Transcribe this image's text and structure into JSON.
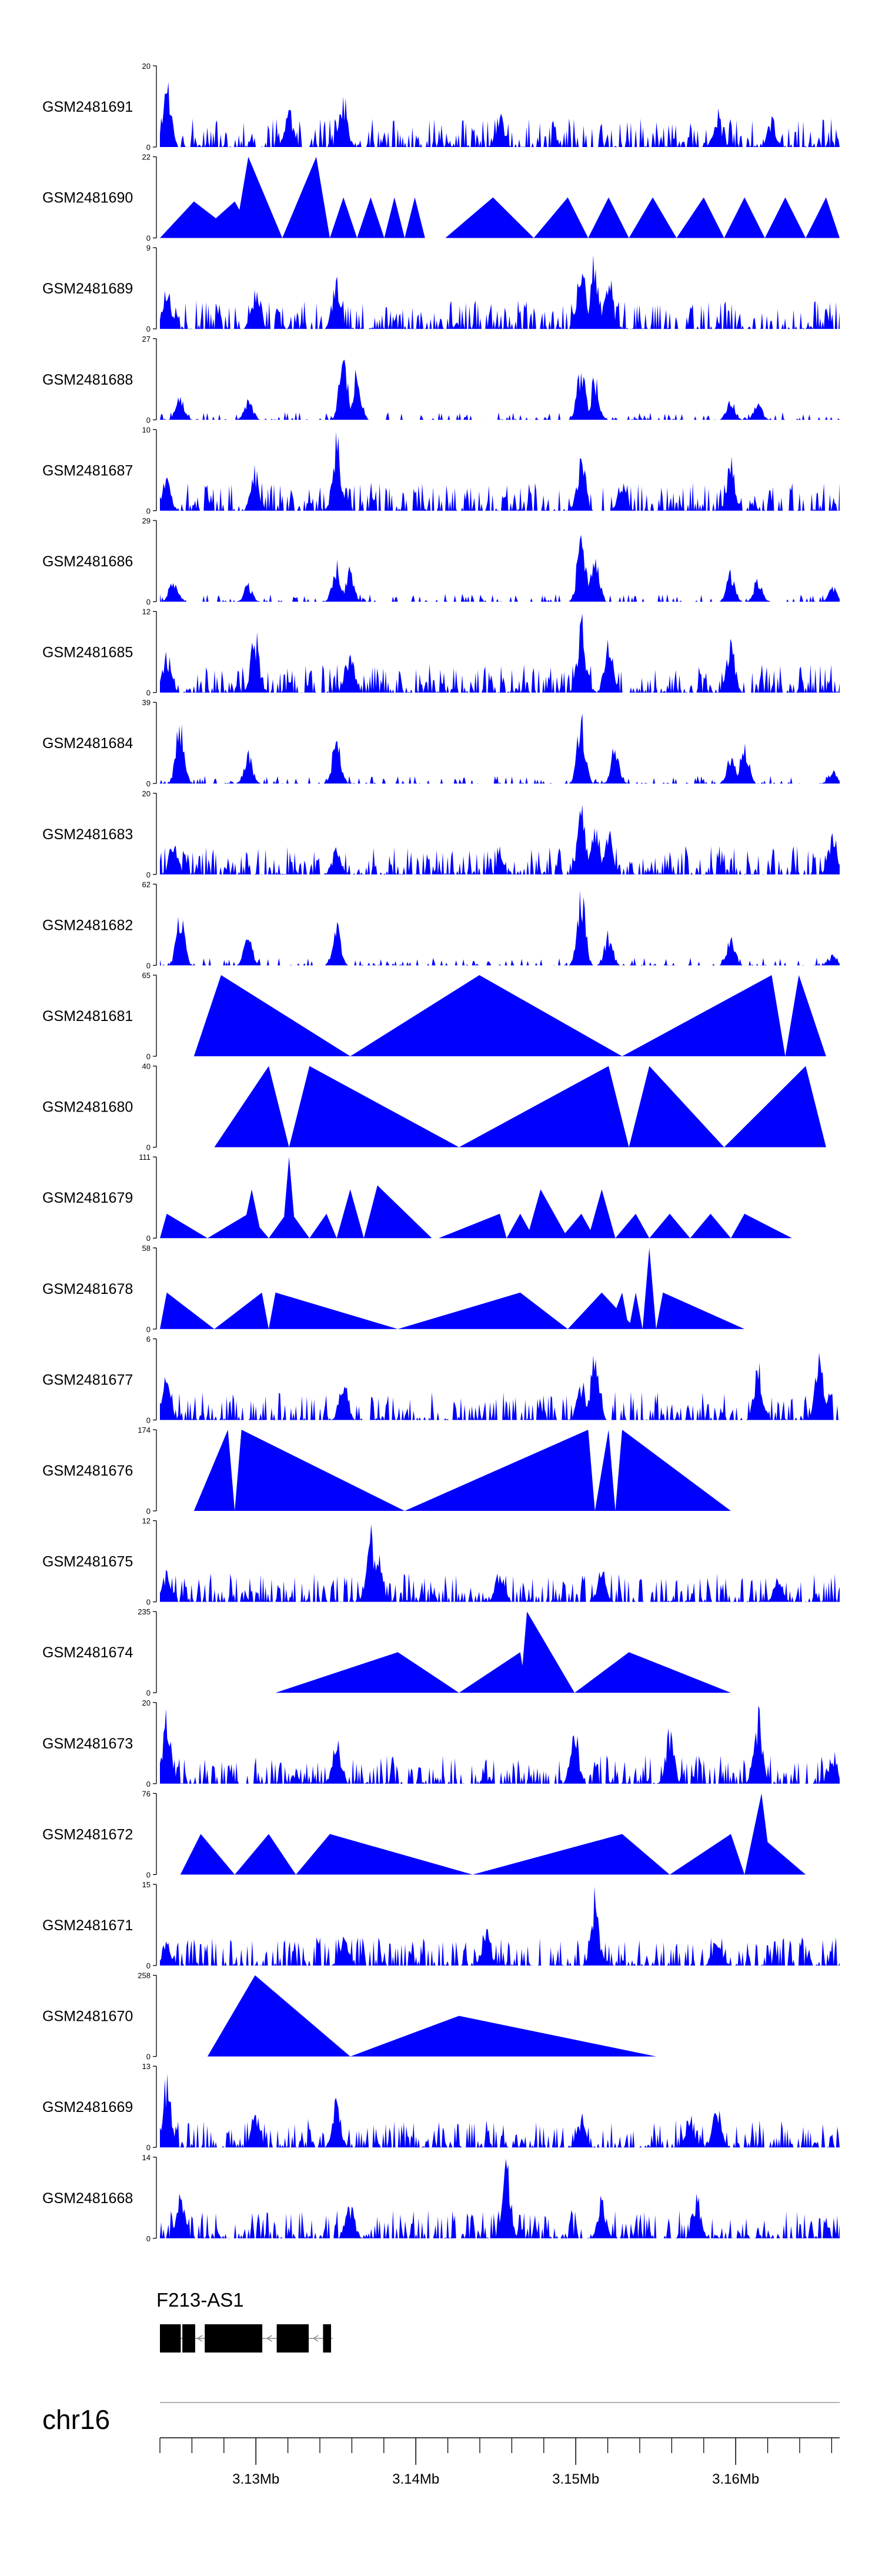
{
  "chart_data": {
    "type": "area",
    "title": "",
    "chromosome": "chr16",
    "xlabel": "",
    "ylabel": "",
    "xlim": [
      3124000,
      3166500
    ],
    "axis_ticks": [
      "3.13Mb",
      "3.14Mb",
      "3.15Mb",
      "3.16Mb"
    ],
    "axis_tick_values": [
      3130000,
      3140000,
      3150000,
      3160000
    ],
    "minor_tick_step": 2000,
    "fill_color": "#0000ff",
    "tracks": [
      {
        "name": "GSM2481691",
        "ymax": 20,
        "ymax_label": "20",
        "ymin_label": "0",
        "seed": 11,
        "kind": "dense",
        "peaks": [
          [
            0.01,
            1.0
          ],
          [
            0.27,
            0.7
          ],
          [
            0.19,
            0.55
          ],
          [
            0.82,
            0.5
          ],
          [
            0.5,
            0.45
          ],
          [
            0.9,
            0.4
          ]
        ]
      },
      {
        "name": "GSM2481690",
        "ymax": 22,
        "ymax_label": "22",
        "ymin_label": "0",
        "kind": "tri",
        "tris": [
          [
            0.0,
            0.05,
            0.12,
            0.45
          ],
          [
            0.05,
            0.11,
            0.14,
            0.45
          ],
          [
            0.11,
            0.13,
            0.18,
            1.0
          ],
          [
            0.18,
            0.23,
            0.25,
            1.0
          ],
          [
            0.25,
            0.27,
            0.29,
            0.5
          ],
          [
            0.29,
            0.31,
            0.33,
            0.5
          ],
          [
            0.33,
            0.345,
            0.36,
            0.5
          ],
          [
            0.36,
            0.375,
            0.39,
            0.5
          ],
          [
            0.42,
            0.49,
            0.55,
            0.5
          ],
          [
            0.55,
            0.6,
            0.63,
            0.5
          ],
          [
            0.63,
            0.66,
            0.69,
            0.5
          ],
          [
            0.69,
            0.725,
            0.76,
            0.5
          ],
          [
            0.76,
            0.8,
            0.83,
            0.5
          ],
          [
            0.83,
            0.86,
            0.89,
            0.5
          ],
          [
            0.89,
            0.92,
            0.95,
            0.5
          ],
          [
            0.95,
            0.98,
            1.0,
            0.5
          ]
        ]
      },
      {
        "name": "GSM2481689",
        "ymax": 9,
        "ymax_label": "9",
        "ymin_label": "0",
        "seed": 23,
        "kind": "dense",
        "peaks": [
          [
            0.26,
            0.8
          ],
          [
            0.62,
            0.95
          ],
          [
            0.64,
            1.0
          ],
          [
            0.66,
            0.8
          ],
          [
            0.01,
            0.6
          ],
          [
            0.14,
            0.55
          ]
        ]
      },
      {
        "name": "GSM2481688",
        "ymax": 27,
        "ymax_label": "27",
        "ymin_label": "0",
        "seed": 31,
        "kind": "sparse",
        "peaks": [
          [
            0.27,
            1.0
          ],
          [
            0.29,
            0.7
          ],
          [
            0.62,
            0.8
          ],
          [
            0.64,
            0.6
          ],
          [
            0.03,
            0.35
          ],
          [
            0.13,
            0.3
          ],
          [
            0.84,
            0.3
          ],
          [
            0.88,
            0.25
          ]
        ]
      },
      {
        "name": "GSM2481687",
        "ymax": 10,
        "ymax_label": "10",
        "ymin_label": "0",
        "seed": 37,
        "kind": "dense",
        "peaks": [
          [
            0.26,
            1.0
          ],
          [
            0.62,
            0.8
          ],
          [
            0.14,
            0.6
          ],
          [
            0.84,
            0.7
          ],
          [
            0.01,
            0.6
          ],
          [
            0.68,
            0.45
          ]
        ]
      },
      {
        "name": "GSM2481686",
        "ymax": 29,
        "ymax_label": "29",
        "ymin_label": "0",
        "seed": 41,
        "kind": "sparse",
        "peaks": [
          [
            0.62,
            1.0
          ],
          [
            0.64,
            0.75
          ],
          [
            0.26,
            0.55
          ],
          [
            0.28,
            0.45
          ],
          [
            0.02,
            0.35
          ],
          [
            0.13,
            0.25
          ],
          [
            0.84,
            0.4
          ],
          [
            0.88,
            0.35
          ],
          [
            0.99,
            0.2
          ]
        ]
      },
      {
        "name": "GSM2481685",
        "ymax": 12,
        "ymax_label": "12",
        "ymin_label": "0",
        "seed": 47,
        "kind": "dense",
        "peaks": [
          [
            0.62,
            1.0
          ],
          [
            0.14,
            0.85
          ],
          [
            0.28,
            0.65
          ],
          [
            0.66,
            0.8
          ],
          [
            0.84,
            0.7
          ],
          [
            0.01,
            0.6
          ]
        ]
      },
      {
        "name": "GSM2481684",
        "ymax": 39,
        "ymax_label": "39",
        "ymin_label": "0",
        "seed": 53,
        "kind": "sparse",
        "peaks": [
          [
            0.03,
            1.0
          ],
          [
            0.13,
            0.45
          ],
          [
            0.26,
            0.7
          ],
          [
            0.62,
            0.95
          ],
          [
            0.67,
            0.55
          ],
          [
            0.84,
            0.4
          ],
          [
            0.86,
            0.6
          ],
          [
            0.99,
            0.2
          ]
        ]
      },
      {
        "name": "GSM2481683",
        "ymax": 20,
        "ymax_label": "20",
        "ymin_label": "0",
        "seed": 59,
        "kind": "dense",
        "peaks": [
          [
            0.62,
            1.0
          ],
          [
            0.64,
            0.85
          ],
          [
            0.66,
            0.6
          ],
          [
            0.02,
            0.5
          ],
          [
            0.26,
            0.4
          ],
          [
            0.99,
            0.65
          ]
        ]
      },
      {
        "name": "GSM2481682",
        "ymax": 62,
        "ymax_label": "62",
        "ymin_label": "0",
        "seed": 61,
        "kind": "sparse",
        "peaks": [
          [
            0.03,
            0.75
          ],
          [
            0.13,
            0.45
          ],
          [
            0.26,
            0.55
          ],
          [
            0.62,
            1.0
          ],
          [
            0.66,
            0.45
          ],
          [
            0.84,
            0.45
          ],
          [
            0.99,
            0.15
          ]
        ]
      },
      {
        "name": "GSM2481681",
        "ymax": 65,
        "ymax_label": "65",
        "ymin_label": "0",
        "kind": "tri",
        "tris": [
          [
            0.05,
            0.09,
            0.28,
            1.0
          ],
          [
            0.28,
            0.47,
            0.68,
            1.0
          ],
          [
            0.68,
            0.9,
            0.92,
            1.0
          ],
          [
            0.92,
            0.94,
            0.98,
            1.0
          ]
        ]
      },
      {
        "name": "GSM2481680",
        "ymax": 40,
        "ymax_label": "40",
        "ymin_label": "0",
        "kind": "tri",
        "tris": [
          [
            0.08,
            0.16,
            0.19,
            1.0
          ],
          [
            0.19,
            0.22,
            0.44,
            1.0
          ],
          [
            0.44,
            0.66,
            0.69,
            1.0
          ],
          [
            0.69,
            0.72,
            0.83,
            1.0
          ],
          [
            0.83,
            0.95,
            0.98,
            1.0
          ]
        ]
      },
      {
        "name": "GSM2481679",
        "ymax": 111,
        "ymax_label": "111",
        "ymin_label": "0",
        "kind": "tri",
        "tris": [
          [
            0.0,
            0.01,
            0.07,
            0.3
          ],
          [
            0.07,
            0.13,
            0.16,
            0.3
          ],
          [
            0.12,
            0.135,
            0.15,
            0.6
          ],
          [
            0.16,
            0.19,
            0.22,
            0.35
          ],
          [
            0.18,
            0.19,
            0.2,
            1.0
          ],
          [
            0.22,
            0.245,
            0.26,
            0.3
          ],
          [
            0.26,
            0.28,
            0.3,
            0.6
          ],
          [
            0.3,
            0.32,
            0.4,
            0.65
          ],
          [
            0.41,
            0.5,
            0.51,
            0.3
          ],
          [
            0.51,
            0.53,
            0.55,
            0.3
          ],
          [
            0.54,
            0.56,
            0.6,
            0.6
          ],
          [
            0.59,
            0.62,
            0.64,
            0.3
          ],
          [
            0.63,
            0.65,
            0.67,
            0.6
          ],
          [
            0.67,
            0.7,
            0.72,
            0.3
          ],
          [
            0.72,
            0.75,
            0.78,
            0.3
          ],
          [
            0.78,
            0.81,
            0.84,
            0.3
          ],
          [
            0.84,
            0.86,
            0.93,
            0.3
          ]
        ]
      },
      {
        "name": "GSM2481678",
        "ymax": 58,
        "ymax_label": "58",
        "ymin_label": "0",
        "kind": "tri",
        "tris": [
          [
            0.0,
            0.01,
            0.08,
            0.45
          ],
          [
            0.08,
            0.15,
            0.16,
            0.45
          ],
          [
            0.16,
            0.17,
            0.35,
            0.45
          ],
          [
            0.35,
            0.53,
            0.6,
            0.45
          ],
          [
            0.6,
            0.65,
            0.7,
            0.45
          ],
          [
            0.66,
            0.68,
            0.69,
            0.45
          ],
          [
            0.69,
            0.7,
            0.71,
            0.45
          ],
          [
            0.71,
            0.72,
            0.73,
            1.0
          ],
          [
            0.73,
            0.74,
            0.86,
            0.45
          ]
        ]
      },
      {
        "name": "GSM2481677",
        "ymax": 6,
        "ymax_label": "6",
        "ymin_label": "0",
        "seed": 71,
        "kind": "dense",
        "peaks": [
          [
            0.64,
            1.0
          ],
          [
            0.62,
            0.6
          ],
          [
            0.88,
            0.8
          ],
          [
            0.97,
            0.85
          ],
          [
            0.27,
            0.65
          ],
          [
            0.01,
            0.6
          ]
        ]
      },
      {
        "name": "GSM2481676",
        "ymax": 174,
        "ymax_label": "174",
        "ymin_label": "0",
        "kind": "tri",
        "tris": [
          [
            0.05,
            0.1,
            0.11,
            1.0
          ],
          [
            0.11,
            0.12,
            0.36,
            1.0
          ],
          [
            0.36,
            0.63,
            0.64,
            1.0
          ],
          [
            0.64,
            0.66,
            0.67,
            1.0
          ],
          [
            0.67,
            0.68,
            0.84,
            1.0
          ]
        ]
      },
      {
        "name": "GSM2481675",
        "ymax": 12,
        "ymax_label": "12",
        "ymin_label": "0",
        "seed": 79,
        "kind": "dense",
        "peaks": [
          [
            0.31,
            1.0
          ],
          [
            0.32,
            0.7
          ],
          [
            0.5,
            0.5
          ],
          [
            0.65,
            0.5
          ],
          [
            0.01,
            0.45
          ],
          [
            0.91,
            0.4
          ]
        ]
      },
      {
        "name": "GSM2481674",
        "ymax": 235,
        "ymax_label": "235",
        "ymin_label": "0",
        "kind": "tri",
        "tris": [
          [
            0.17,
            0.35,
            0.44,
            0.5
          ],
          [
            0.44,
            0.53,
            0.54,
            0.5
          ],
          [
            0.53,
            0.54,
            0.61,
            1.0
          ],
          [
            0.61,
            0.69,
            0.84,
            0.5
          ]
        ]
      },
      {
        "name": "GSM2481673",
        "ymax": 20,
        "ymax_label": "20",
        "ymin_label": "0",
        "seed": 83,
        "kind": "dense",
        "peaks": [
          [
            0.01,
            1.0
          ],
          [
            0.88,
            1.0
          ],
          [
            0.61,
            0.8
          ],
          [
            0.75,
            0.75
          ],
          [
            0.26,
            0.65
          ],
          [
            0.99,
            0.45
          ]
        ]
      },
      {
        "name": "GSM2481672",
        "ymax": 76,
        "ymax_label": "76",
        "ymin_label": "0",
        "kind": "tri",
        "tris": [
          [
            0.03,
            0.06,
            0.11,
            0.5
          ],
          [
            0.11,
            0.16,
            0.2,
            0.5
          ],
          [
            0.2,
            0.25,
            0.46,
            0.5
          ],
          [
            0.46,
            0.68,
            0.75,
            0.5
          ],
          [
            0.75,
            0.84,
            0.86,
            0.5
          ],
          [
            0.86,
            0.88,
            0.95,
            0.5
          ],
          [
            0.86,
            0.885,
            0.9,
            1.0
          ]
        ]
      },
      {
        "name": "GSM2481671",
        "ymax": 15,
        "ymax_label": "15",
        "ymin_label": "0",
        "seed": 97,
        "kind": "dense",
        "peaks": [
          [
            0.64,
            1.0
          ],
          [
            0.48,
            0.6
          ],
          [
            0.27,
            0.45
          ],
          [
            0.82,
            0.45
          ],
          [
            0.01,
            0.4
          ]
        ]
      },
      {
        "name": "GSM2481670",
        "ymax": 258,
        "ymax_label": "258",
        "ymin_label": "0",
        "kind": "tri",
        "tris": [
          [
            0.07,
            0.14,
            0.28,
            1.0
          ],
          [
            0.28,
            0.44,
            0.73,
            0.5
          ]
        ]
      },
      {
        "name": "GSM2481669",
        "ymax": 13,
        "ymax_label": "13",
        "ymin_label": "0",
        "seed": 101,
        "kind": "dense",
        "peaks": [
          [
            0.01,
            1.0
          ],
          [
            0.26,
            0.7
          ],
          [
            0.14,
            0.55
          ],
          [
            0.62,
            0.45
          ],
          [
            0.82,
            0.6
          ],
          [
            0.78,
            0.5
          ]
        ]
      },
      {
        "name": "GSM2481668",
        "ymax": 14,
        "ymax_label": "14",
        "ymin_label": "0",
        "seed": 109,
        "kind": "dense",
        "peaks": [
          [
            0.51,
            1.0
          ],
          [
            0.03,
            0.65
          ],
          [
            0.79,
            0.65
          ],
          [
            0.65,
            0.55
          ],
          [
            0.28,
            0.5
          ]
        ]
      }
    ],
    "gene": {
      "name": "F213-AS1",
      "strand": "minus",
      "start": 3124000,
      "end": 3134800,
      "exons": [
        [
          3124000,
          3125300
        ],
        [
          3125400,
          3126200
        ],
        [
          3126800,
          3130400
        ],
        [
          3131300,
          3133300
        ],
        [
          3134200,
          3134700
        ]
      ]
    }
  }
}
